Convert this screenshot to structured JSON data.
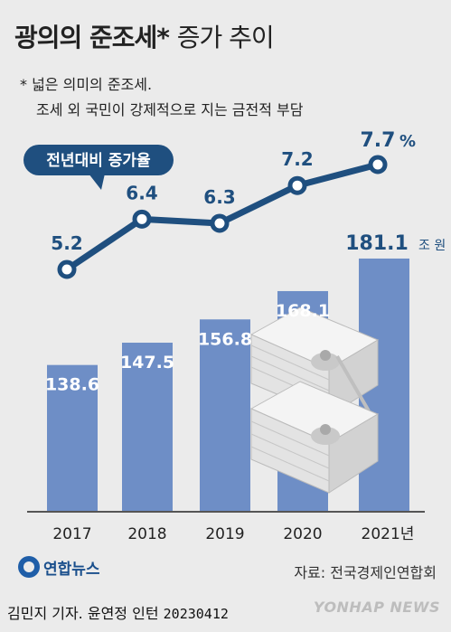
{
  "header": {
    "title_bold": "광의의 준조세*",
    "title_light": "증가 추이",
    "note_line1": "* 넓은 의미의 준조세.",
    "note_line2": "조세 외 국민이 강제적으로 지는 금전적 부담"
  },
  "footer": {
    "source": "자료: 전국경제인연합회",
    "credit": "김민지 기자. 윤연정 인턴",
    "date": "20230412",
    "logo_text": "연합뉴스",
    "watermark": "YONHAP NEWS"
  },
  "colors": {
    "background": "#ebebeb",
    "bar": "#6e8ec6",
    "line": "#1f4f7f",
    "marker_fill": "#ffffff",
    "label_dark": "#1f4f7f",
    "label_light": "#ffffff"
  },
  "chart_data": {
    "type": "bar",
    "categories": [
      "2017",
      "2018",
      "2019",
      "2020",
      "2021년"
    ],
    "series": [
      {
        "values": [
          138.6,
          147.5,
          156.8,
          168.1,
          181.1
        ]
      },
      {
        "name": "전년대비 증가율",
        "values": [
          5.2,
          6.4,
          6.3,
          7.2,
          7.7
        ]
      }
    ],
    "bar_labels": [
      "138.6",
      "147.5",
      "156.8",
      "168.1",
      "181.1"
    ],
    "line_labels": [
      "5.2",
      "6.4",
      "6.3",
      "7.2",
      "7.7"
    ],
    "bar_unit": "조 원",
    "line_unit": "%",
    "legend_label": "전년대비 증가율",
    "title": "",
    "xlabel": "",
    "ylabel": ""
  }
}
